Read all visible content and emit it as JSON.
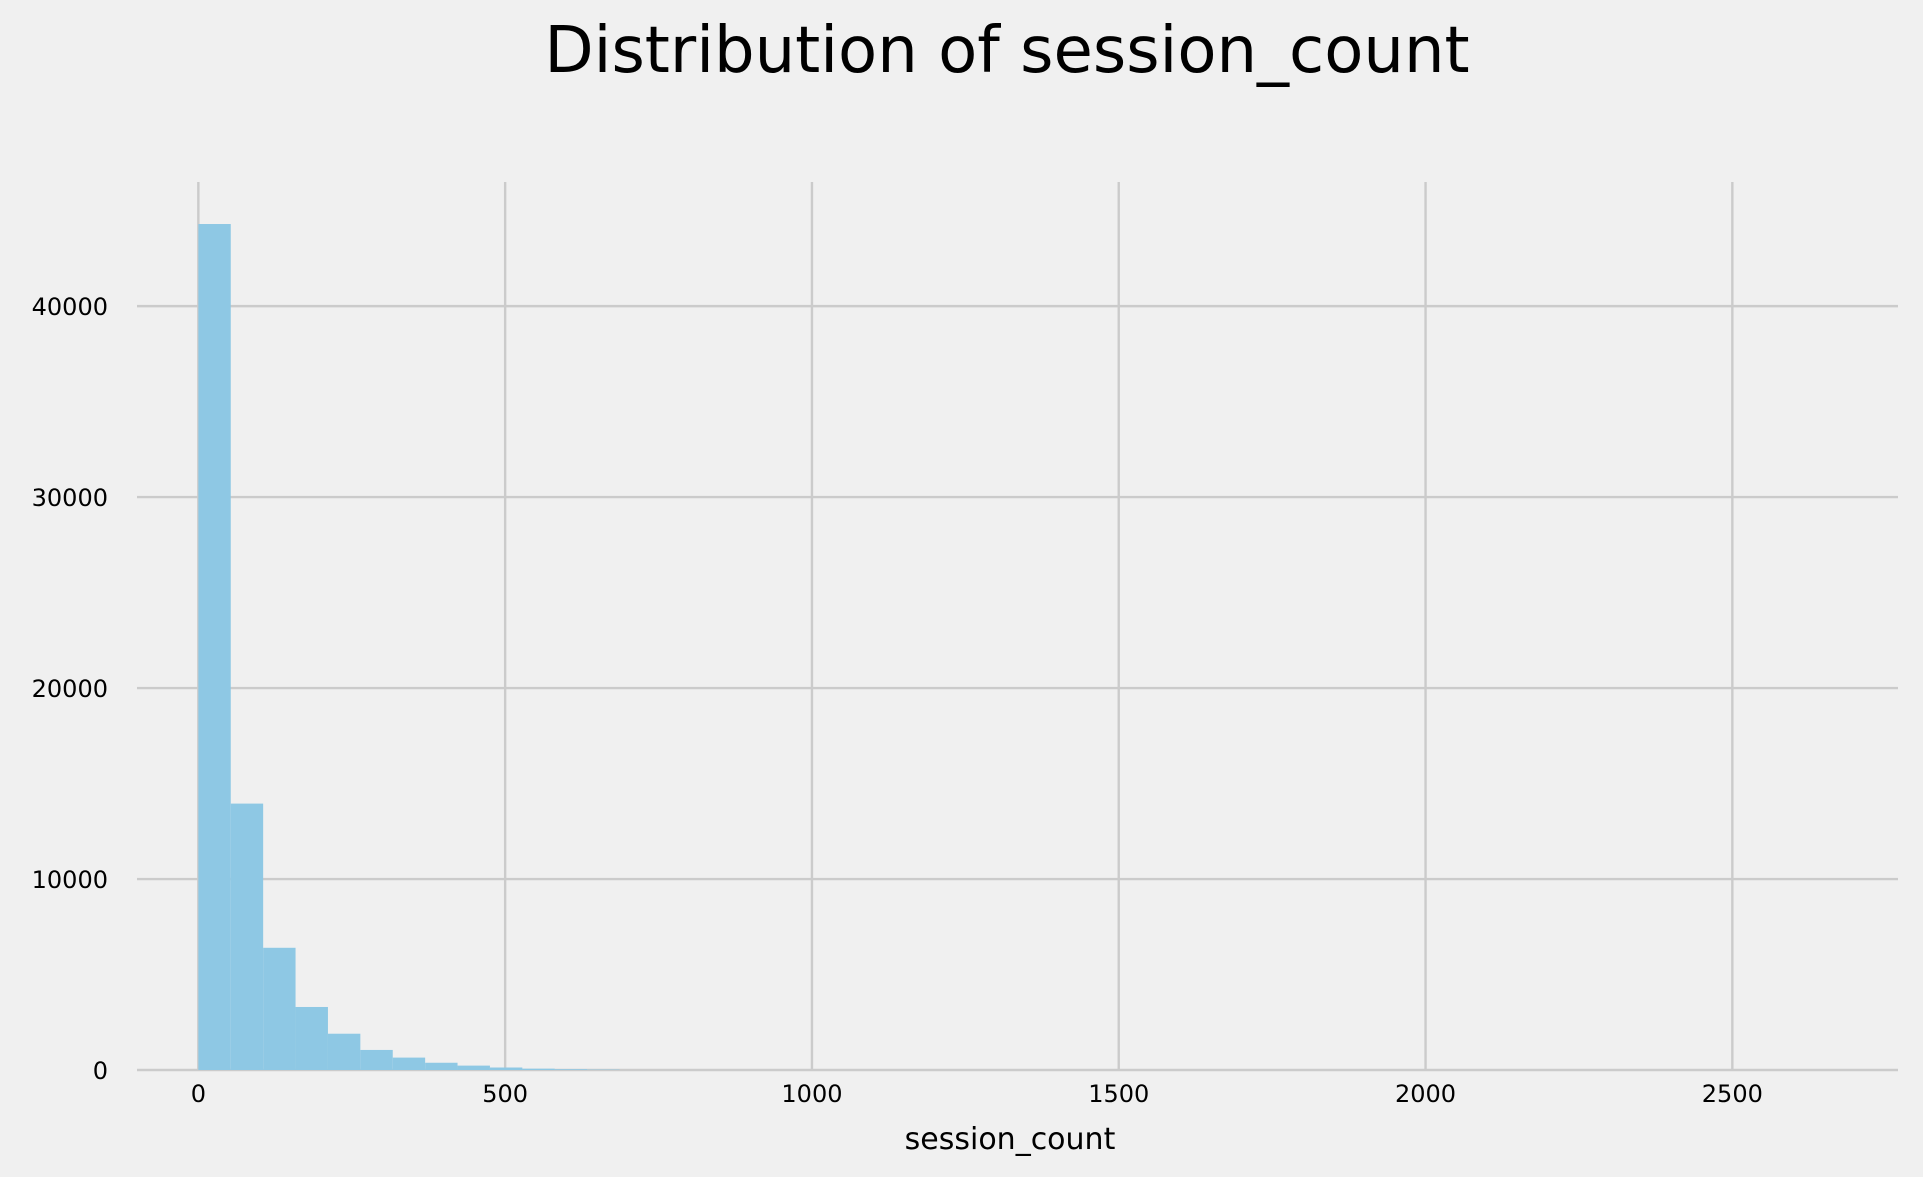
{
  "chart_data": {
    "type": "bar",
    "title": "Distribution of session_count",
    "xlabel": "session_count",
    "ylabel": "",
    "xlim": [
      -100,
      2770
    ],
    "ylim": [
      0,
      46500
    ],
    "x_ticks": [
      0,
      500,
      1000,
      1500,
      2000,
      2500
    ],
    "y_ticks": [
      0,
      10000,
      20000,
      30000,
      40000
    ],
    "grid": true,
    "bar_color": "#8ec8e4",
    "background": "#f0f0f0",
    "grid_color": "#cbcbcb",
    "bin_width": 52.8,
    "bins": [
      {
        "x0": 0.0,
        "x1": 52.8,
        "count": 44300
      },
      {
        "x0": 52.8,
        "x1": 105.6,
        "count": 13950
      },
      {
        "x0": 105.6,
        "x1": 158.4,
        "count": 6400
      },
      {
        "x0": 158.4,
        "x1": 211.2,
        "count": 3300
      },
      {
        "x0": 211.2,
        "x1": 264.0,
        "count": 1900
      },
      {
        "x0": 264.0,
        "x1": 316.8,
        "count": 1050
      },
      {
        "x0": 316.8,
        "x1": 369.6,
        "count": 650
      },
      {
        "x0": 369.6,
        "x1": 422.4,
        "count": 380
      },
      {
        "x0": 422.4,
        "x1": 475.2,
        "count": 230
      },
      {
        "x0": 475.2,
        "x1": 528.0,
        "count": 130
      },
      {
        "x0": 528.0,
        "x1": 580.8,
        "count": 70
      },
      {
        "x0": 580.8,
        "x1": 633.6,
        "count": 40
      },
      {
        "x0": 633.6,
        "x1": 686.4,
        "count": 20
      }
    ]
  }
}
